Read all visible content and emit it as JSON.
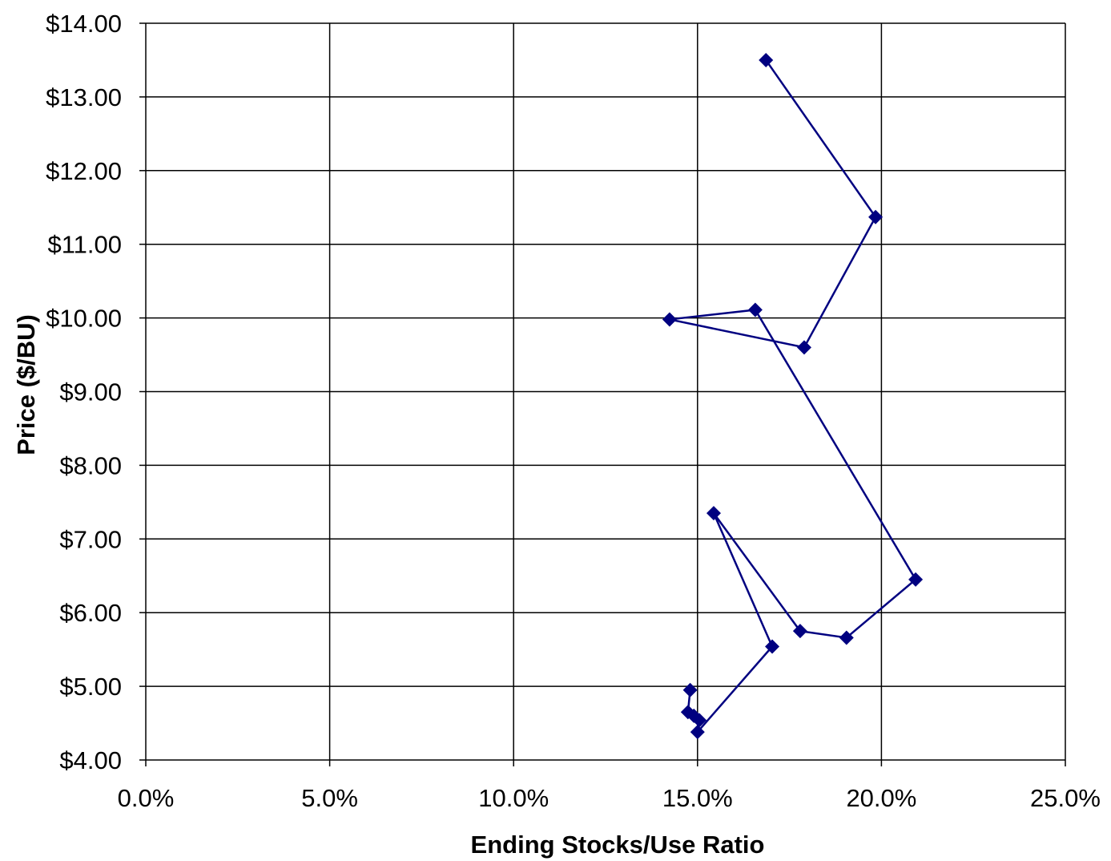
{
  "chart_data": {
    "type": "line",
    "x_label": "Ending Stocks/Use Ratio",
    "y_label": "Price ($/BU)",
    "x": [
      16.86,
      19.84,
      17.9,
      14.24,
      16.57,
      20.93,
      19.05,
      17.79,
      15.44,
      17.03,
      15.0,
      15.05,
      14.9,
      14.74,
      14.8
    ],
    "values": [
      13.5,
      11.37,
      9.6,
      9.98,
      10.11,
      6.45,
      5.66,
      5.75,
      7.35,
      5.54,
      4.38,
      4.54,
      4.6,
      4.65,
      4.95
    ],
    "color": "#000080",
    "marker": "diamond",
    "xlim": [
      0,
      25
    ],
    "xticks": [
      {
        "value": 0,
        "label": "0.0%"
      },
      {
        "value": 5,
        "label": "5.0%"
      },
      {
        "value": 10,
        "label": "10.0%"
      },
      {
        "value": 15,
        "label": "15.0%"
      },
      {
        "value": 20,
        "label": "20.0%"
      },
      {
        "value": 25,
        "label": "25.0%"
      }
    ],
    "ylim": [
      4,
      14
    ],
    "yticks": [
      {
        "value": 4,
        "label": "$4.00"
      },
      {
        "value": 5,
        "label": "$5.00"
      },
      {
        "value": 6,
        "label": "$6.00"
      },
      {
        "value": 7,
        "label": "$7.00"
      },
      {
        "value": 8,
        "label": "$8.00"
      },
      {
        "value": 9,
        "label": "$9.00"
      },
      {
        "value": 10,
        "label": "$10.00"
      },
      {
        "value": 11,
        "label": "$11.00"
      },
      {
        "value": 12,
        "label": "$12.00"
      },
      {
        "value": 13,
        "label": "$13.00"
      },
      {
        "value": 14,
        "label": "$14.00"
      }
    ],
    "grid": true
  }
}
